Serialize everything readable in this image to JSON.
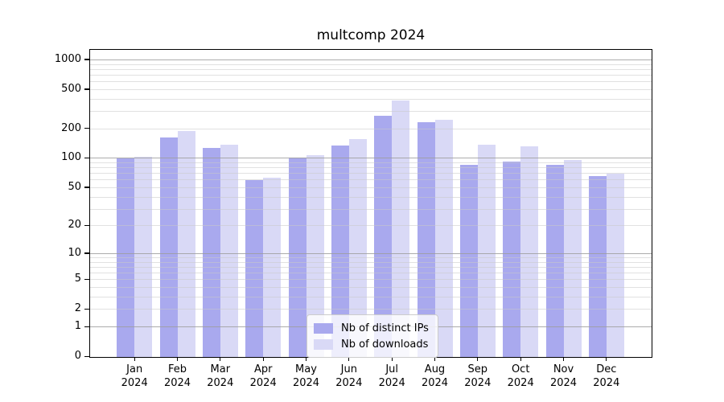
{
  "chart_data": {
    "type": "bar",
    "title": "multcomp 2024",
    "categories": [
      "Jan",
      "Feb",
      "Mar",
      "Apr",
      "May",
      "Jun",
      "Jul",
      "Aug",
      "Sep",
      "Oct",
      "Nov",
      "Dec"
    ],
    "x_tick_second_line": "2024",
    "series": [
      {
        "name": "Nb of distinct IPs",
        "color": "#a9a9ee",
        "values": [
          100,
          166,
          130,
          60,
          102,
          136,
          274,
          236,
          87,
          94,
          86,
          66
        ]
      },
      {
        "name": "Nb of downloads",
        "color": "#d9d9f6",
        "values": [
          105,
          190,
          138,
          64,
          108,
          160,
          390,
          250,
          140,
          133,
          98,
          71
        ]
      }
    ],
    "yscale": "log1p",
    "ylim": [
      0,
      1250
    ],
    "ytick_labels": [
      1000,
      500,
      200,
      100,
      50,
      20,
      10,
      5,
      2,
      1,
      0
    ],
    "grid": {
      "on": true,
      "major_values": [
        1,
        10,
        100,
        1000
      ],
      "minor_values": [
        2,
        3,
        4,
        5,
        6,
        7,
        8,
        9,
        20,
        30,
        40,
        50,
        60,
        70,
        80,
        90,
        200,
        300,
        400,
        500,
        600,
        700,
        800,
        900
      ]
    },
    "legend": {
      "position": "bottom-center"
    },
    "colors": {
      "major_grid": "#b0b0b0",
      "minor_grid": "#e3e3e3",
      "spine": "#000000",
      "background": "#ffffff"
    }
  }
}
